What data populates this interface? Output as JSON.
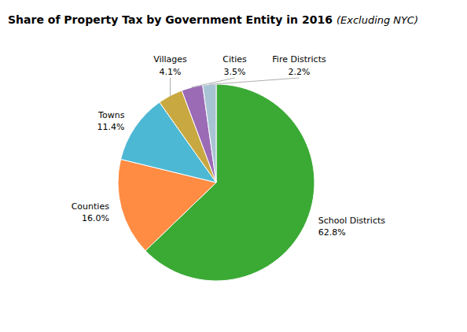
{
  "chart_data": {
    "type": "pie",
    "title": "Share of Property Tax by Government Entity in 2016",
    "subtitle": "(Excluding NYC)",
    "categories": [
      "School Districts",
      "Counties",
      "Towns",
      "Villages",
      "Cities",
      "Fire Districts"
    ],
    "values": [
      62.8,
      16.0,
      11.4,
      4.1,
      3.5,
      2.2
    ],
    "value_labels": [
      "62.8%",
      "16.0%",
      "11.4%",
      "4.1%",
      "3.5%",
      "2.2%"
    ],
    "colors": [
      "#3aaa35",
      "#FF8C42",
      "#4DB8D4",
      "#C8A840",
      "#9B6BB5",
      "#A8C4D4"
    ],
    "data_labels": true
  }
}
